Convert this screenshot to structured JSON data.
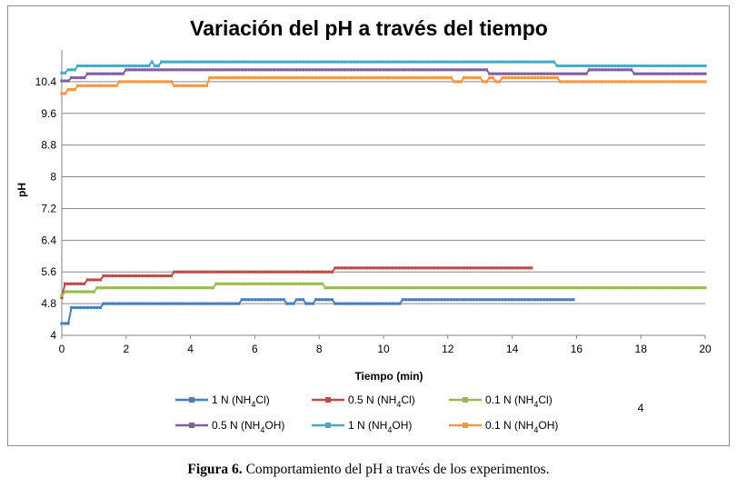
{
  "chart_data": {
    "type": "line",
    "title": "Variación del pH a través del tiempo",
    "xlabel": "Tiempo (min)",
    "ylabel": "pH",
    "xlim": [
      0,
      20
    ],
    "ylim": [
      4,
      11.2
    ],
    "xticks": [
      0,
      2,
      4,
      6,
      8,
      10,
      12,
      14,
      16,
      18,
      20
    ],
    "yticks": [
      4,
      4.8,
      5.6,
      6.4,
      7.2,
      8,
      8.8,
      9.6,
      10.4
    ],
    "ytick_labels": [
      "4",
      "4.8",
      "5.6",
      "6.4",
      "7.2",
      "8",
      "8.8",
      "9.6",
      "10.4"
    ],
    "legend_position": "bottom",
    "stray_label": "4",
    "series": [
      {
        "name": "1 N (NH4Cl)",
        "base": "1 N (NH",
        "sub": "4",
        "tail": "Cl)",
        "color": "#4a7ebb",
        "steps": [
          [
            0,
            4.3
          ],
          [
            0.3,
            4.7
          ],
          [
            1.3,
            4.8
          ],
          [
            5.6,
            4.9
          ],
          [
            7.0,
            4.8
          ],
          [
            7.3,
            4.9
          ],
          [
            7.6,
            4.8
          ],
          [
            7.9,
            4.9
          ],
          [
            8.5,
            4.8
          ],
          [
            10.6,
            4.9
          ]
        ],
        "x_end": 15.9
      },
      {
        "name": "0.5 N (NH4Cl)",
        "base": "0.5 N (NH",
        "sub": "4",
        "tail": "Cl)",
        "color": "#be4b48",
        "steps": [
          [
            0,
            4.95
          ],
          [
            0.1,
            5.3
          ],
          [
            0.8,
            5.4
          ],
          [
            1.3,
            5.5
          ],
          [
            3.5,
            5.6
          ],
          [
            8.5,
            5.7
          ]
        ],
        "x_end": 14.6
      },
      {
        "name": "0.1 N (NH4Cl)",
        "base": "0.1 N (NH",
        "sub": "4",
        "tail": "Cl)",
        "color": "#98b954",
        "steps": [
          [
            0,
            5.0
          ],
          [
            0.1,
            5.1
          ],
          [
            1.1,
            5.2
          ],
          [
            4.8,
            5.3
          ],
          [
            8.2,
            5.2
          ]
        ],
        "x_end": 20.0
      },
      {
        "name": "0.5 N (NH4OH)",
        "base": "0.5 N (NH",
        "sub": "4",
        "tail": "OH)",
        "color": "#7d60a0",
        "steps": [
          [
            0,
            10.42
          ],
          [
            0.3,
            10.5
          ],
          [
            0.8,
            10.6
          ],
          [
            2.0,
            10.7
          ],
          [
            13.3,
            10.6
          ],
          [
            16.4,
            10.7
          ],
          [
            17.8,
            10.6
          ]
        ],
        "x_end": 20.0
      },
      {
        "name": "1 N (NH4OH)",
        "base": "1 N (NH",
        "sub": "4",
        "tail": "OH)",
        "color": "#46aac5",
        "steps": [
          [
            0,
            10.62
          ],
          [
            0.2,
            10.7
          ],
          [
            0.5,
            10.8
          ],
          [
            2.8,
            10.9
          ],
          [
            2.9,
            10.8
          ],
          [
            3.1,
            10.9
          ],
          [
            15.4,
            10.8
          ]
        ],
        "x_end": 20.0
      },
      {
        "name": "0.1 N (NH4OH)",
        "base": "0.1 N (NH",
        "sub": "4",
        "tail": "OH)",
        "color": "#f79646",
        "steps": [
          [
            0,
            10.1
          ],
          [
            0.2,
            10.2
          ],
          [
            0.5,
            10.3
          ],
          [
            1.8,
            10.4
          ],
          [
            3.5,
            10.3
          ],
          [
            4.6,
            10.5
          ],
          [
            12.2,
            10.4
          ],
          [
            12.5,
            10.5
          ],
          [
            13.1,
            10.4
          ],
          [
            13.3,
            10.5
          ],
          [
            13.5,
            10.4
          ],
          [
            13.7,
            10.5
          ],
          [
            15.5,
            10.4
          ]
        ],
        "x_end": 20.0
      }
    ]
  },
  "caption": {
    "label": "Figura 6.",
    "text": " Comportamiento del pH a través de los experimentos."
  }
}
